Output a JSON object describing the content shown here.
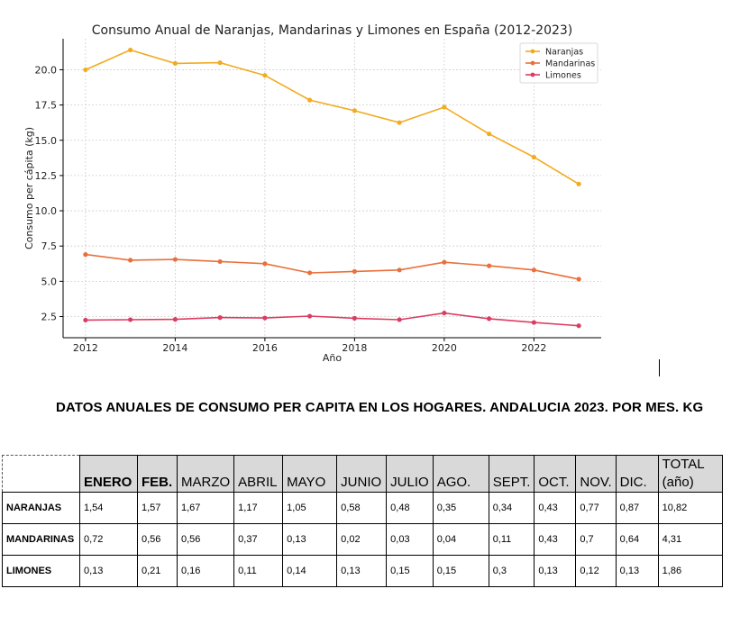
{
  "chart_data": {
    "type": "line",
    "title": "Consumo Anual de Naranjas, Mandarinas y Limones en España (2012-2023)",
    "xlabel": "Año",
    "ylabel": "Consumo per cápita (kg)",
    "x": [
      2012,
      2013,
      2014,
      2015,
      2016,
      2017,
      2018,
      2019,
      2020,
      2021,
      2022,
      2023
    ],
    "xticks": [
      2012,
      2014,
      2016,
      2018,
      2020,
      2022
    ],
    "xtick_labels": [
      "2012",
      "2014",
      "2016",
      "2018",
      "2020",
      "2022"
    ],
    "yticks": [
      2.5,
      5.0,
      7.5,
      10.0,
      12.5,
      15.0,
      17.5,
      20.0
    ],
    "ytick_labels": [
      "2.5",
      "5.0",
      "7.5",
      "10.0",
      "12.5",
      "15.0",
      "17.5",
      "20.0"
    ],
    "xlim": [
      2011.5,
      2023.5
    ],
    "ylim": [
      1.0,
      22.2
    ],
    "grid": true,
    "legend_position": "top-right",
    "series": [
      {
        "name": "Naranjas",
        "color": "#f2ab1f",
        "values": [
          20.0,
          21.4,
          20.45,
          20.5,
          19.6,
          17.85,
          17.1,
          16.25,
          17.35,
          15.45,
          13.8,
          11.9
        ]
      },
      {
        "name": "Mandarinas",
        "color": "#e9703a",
        "values": [
          6.9,
          6.5,
          6.55,
          6.4,
          6.25,
          5.6,
          5.7,
          5.8,
          6.35,
          6.1,
          5.8,
          5.15
        ]
      },
      {
        "name": "Limones",
        "color": "#dd3c62",
        "values": [
          2.25,
          2.28,
          2.3,
          2.43,
          2.4,
          2.53,
          2.38,
          2.28,
          2.75,
          2.35,
          2.08,
          1.85
        ]
      }
    ]
  },
  "table": {
    "title": "DATOS ANUALES DE CONSUMO PER CAPITA EN LOS HOGARES. ANDALUCIA 2023. POR MES. KG",
    "headers": [
      "",
      "ENERO",
      "FEB.",
      "MARZO",
      "ABRIL",
      "MAYO",
      "JUNIO",
      "JULIO",
      "AGO.",
      "SEPT.",
      "OCT.",
      "NOV.",
      "DIC.",
      "TOTAL (año)"
    ],
    "total_header_line1": "TOTAL",
    "total_header_line2": "(año)",
    "rows": [
      {
        "label": "NARANJAS",
        "values": [
          "1,54",
          "1,57",
          "1,67",
          "1,17",
          "1,05",
          "0,58",
          "0,48",
          "0,35",
          "0,34",
          "0,43",
          "0,77",
          "0,87",
          "10,82"
        ]
      },
      {
        "label": "MANDARINAS",
        "values": [
          "0,72",
          "0,56",
          "0,56",
          "0,37",
          "0,13",
          "0,02",
          "0,03",
          "0,04",
          "0,11",
          "0,43",
          "0,7",
          "0,64",
          "4,31"
        ]
      },
      {
        "label": "LIMONES",
        "values": [
          "0,13",
          "0,21",
          "0,16",
          "0,11",
          "0,14",
          "0,13",
          "0,15",
          "0,15",
          "0,3",
          "0,13",
          "0,12",
          "0,13",
          "1,86"
        ]
      }
    ]
  }
}
